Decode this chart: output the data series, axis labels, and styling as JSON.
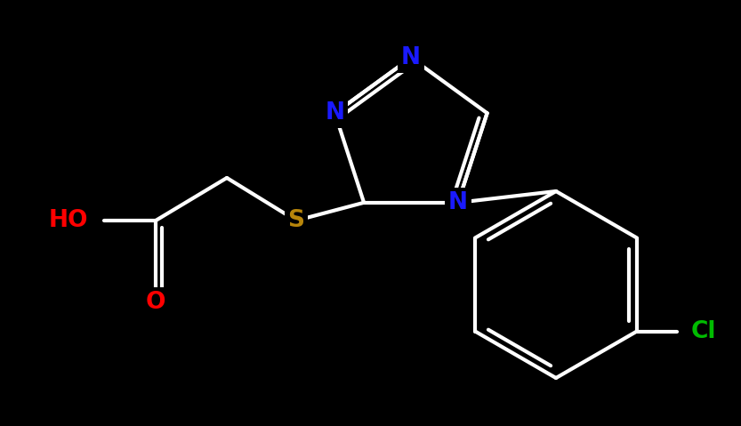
{
  "background_color": "#000000",
  "bond_color": "#ffffff",
  "bond_width": 3.0,
  "atom_colors": {
    "N": "#1a1aff",
    "S": "#b8860b",
    "O": "#ff0000",
    "Cl": "#00bb00",
    "C": "#ffffff",
    "HO": "#ff0000"
  },
  "figure_size": [
    8.33,
    4.79
  ],
  "dpi": 100,
  "xlim": [
    0,
    833
  ],
  "ylim": [
    0,
    479
  ]
}
